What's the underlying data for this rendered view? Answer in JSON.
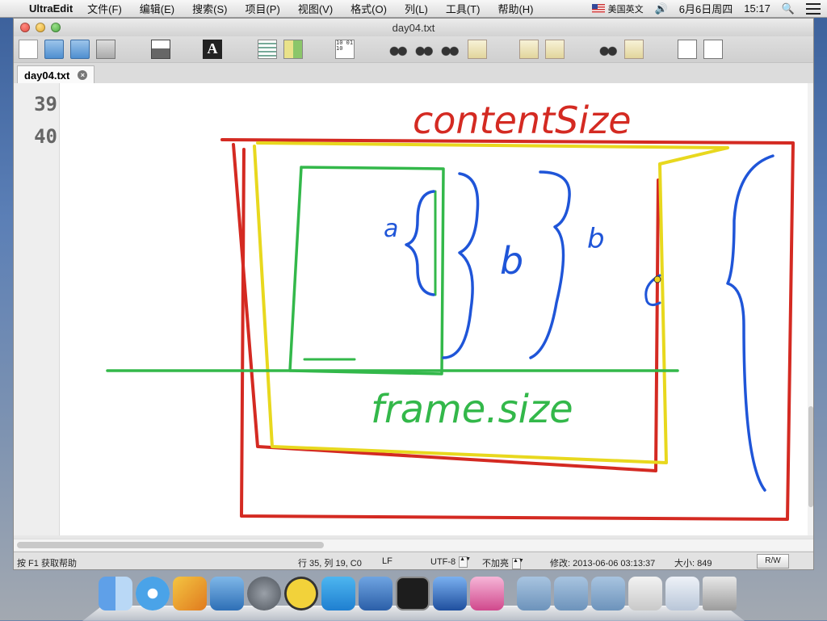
{
  "menubar": {
    "app_name": "UltraEdit",
    "menus": [
      "文件(F)",
      "编辑(E)",
      "搜索(S)",
      "项目(P)",
      "视图(V)",
      "格式(O)",
      "列(L)",
      "工具(T)",
      "帮助(H)"
    ],
    "input_source": "美国英文",
    "date": "6月6日周四",
    "time": "15:17"
  },
  "window": {
    "title": "day04.txt"
  },
  "tabs": [
    {
      "label": "day04.txt"
    }
  ],
  "editor": {
    "line_numbers": [
      "39",
      "40"
    ],
    "annotations": {
      "content_size": "contentSize",
      "frame_size": "frame.size",
      "label_a": "a",
      "label_b1": "b",
      "label_b2": "b"
    }
  },
  "toolbar": {
    "font_glyph": "A",
    "binary_glyph": "10 01 10"
  },
  "statusbar": {
    "help": "按 F1 获取帮助",
    "position": "行 35, 列 19, C0",
    "line_ending": "LF",
    "encoding": "UTF-8",
    "highlight": "不加亮",
    "modified": "修改: 2013-06-06 03:13:37",
    "size": "大小: 849",
    "mode": "R/W"
  },
  "colors": {
    "red": "#d42a22",
    "yellow": "#e8d81e",
    "green": "#33b84a",
    "blue": "#1f55d8"
  }
}
